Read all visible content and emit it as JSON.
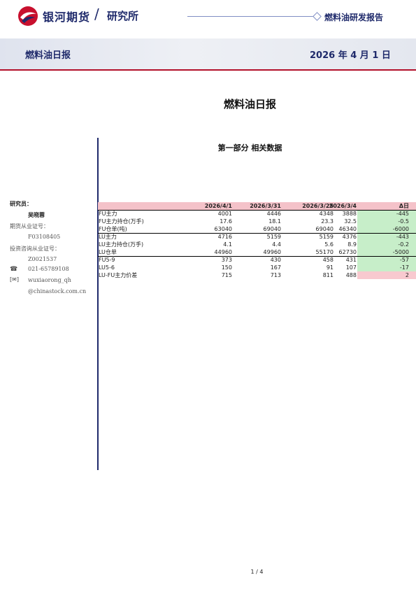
{
  "header": {
    "brand_name": "银河期货",
    "brand_slash": "/",
    "brand_sub": "研究所",
    "report_type": "燃料油研发报告",
    "banner_title": "燃料油日报",
    "banner_date": "2026 年 4 月 1 日",
    "colors": {
      "brand_navy": "#1f2a6b",
      "accent_red": "#b3102a"
    }
  },
  "document": {
    "title": "燃料油日报",
    "section_title": "第一部分 相关数据"
  },
  "sidebar": {
    "researcher_label": "研究员：",
    "researcher_name": "吴晓蓉",
    "futures_cert_label": "期货从业证号：",
    "futures_cert": "F03108405",
    "invest_cert_label": "投资咨询从业证号：",
    "invest_cert": "Z0021537",
    "phone_icon": "phone-icon",
    "phone": "021-65789108",
    "email_icon": "email-icon",
    "email_line1": "wuxiaorong_qh",
    "email_line2": "@chinastock.com.cn"
  },
  "table": {
    "headers": [
      "",
      "2026/4/1",
      "2026/3/31",
      "2026/3/25",
      "2026/3/4",
      "Δ日"
    ],
    "rows": [
      [
        "FU主力",
        "4001",
        "4446",
        "4348",
        "3888",
        "-445"
      ],
      [
        "FU主力持仓(万手)",
        "17.6",
        "18.1",
        "23.3",
        "32.5",
        "-0.5"
      ],
      [
        "FU仓单(吨)",
        "63040",
        "69040",
        "69040",
        "46340",
        "-6000"
      ],
      [
        "LU主力",
        "4716",
        "5159",
        "5159",
        "4376",
        "-443"
      ],
      [
        "LU主力持仓(万手)",
        "4.1",
        "4.4",
        "5.6",
        "8.9",
        "-0.2"
      ],
      [
        "LU仓单",
        "44960",
        "49960",
        "55170",
        "62730",
        "-5000"
      ],
      [
        "FU5-9",
        "373",
        "430",
        "458",
        "431",
        "-57"
      ],
      [
        "LU5-6",
        "150",
        "167",
        "91",
        "107",
        "-17"
      ],
      [
        "LU-FU主力价差",
        "715",
        "713",
        "811",
        "488",
        "2"
      ]
    ],
    "delta_colors": [
      "green",
      "green",
      "green",
      "green",
      "green",
      "green",
      "green",
      "green",
      "pink"
    ]
  },
  "footer": {
    "page": "1 / 4"
  }
}
